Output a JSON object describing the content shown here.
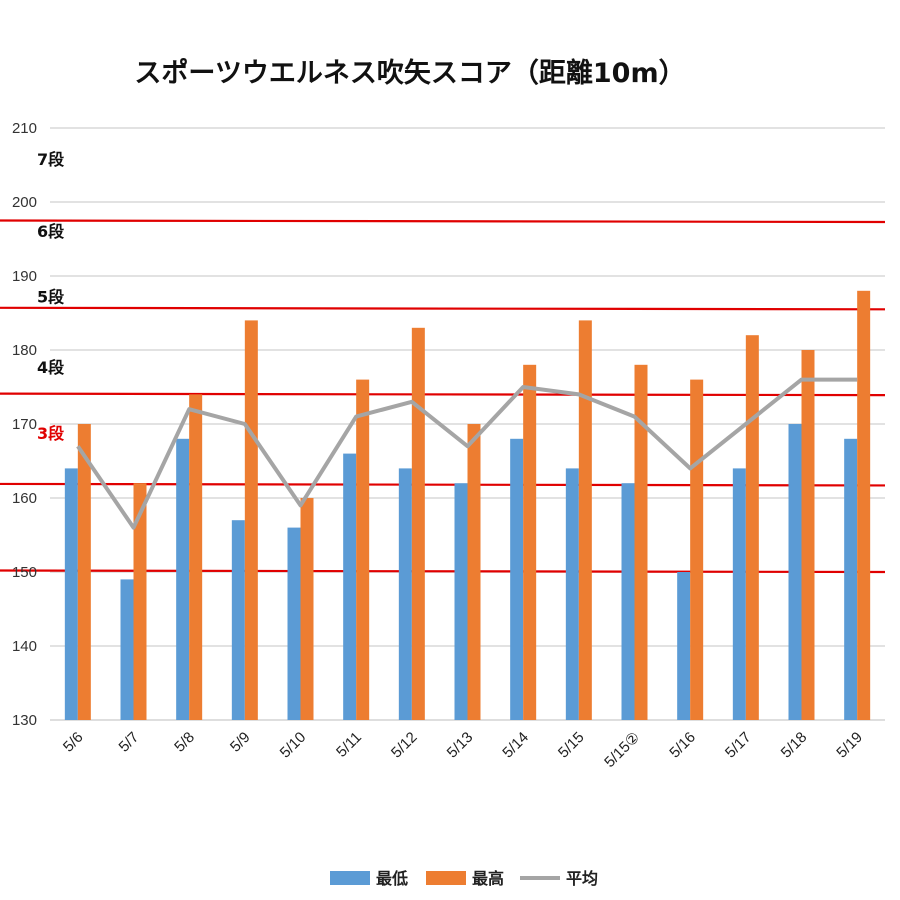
{
  "chart_data": {
    "type": "bar",
    "title": "スポーツウエルネス吹矢スコア（距離10m）",
    "categories": [
      "5/6",
      "5/7",
      "5/8",
      "5/9",
      "5/10",
      "5/11",
      "5/12",
      "5/13",
      "5/14",
      "5/15",
      "5/15②",
      "5/16",
      "5/17",
      "5/18",
      "5/19"
    ],
    "series": [
      {
        "name": "最低",
        "type": "bar",
        "color": "#5b9bd5",
        "values": [
          164,
          149,
          168,
          157,
          156,
          166,
          164,
          162,
          168,
          164,
          162,
          150,
          164,
          170,
          168
        ]
      },
      {
        "name": "最高",
        "type": "bar",
        "color": "#ed7d31",
        "values": [
          170,
          162,
          174,
          184,
          160,
          176,
          183,
          170,
          178,
          184,
          178,
          176,
          182,
          180,
          188
        ]
      },
      {
        "name": "平均",
        "type": "line",
        "color": "#a5a5a5",
        "values": [
          167,
          156,
          172,
          170,
          159,
          171,
          173,
          167,
          175,
          174,
          171,
          164,
          170,
          176,
          176
        ]
      }
    ],
    "ylim": [
      130,
      210
    ],
    "yticks": [
      130,
      140,
      150,
      160,
      170,
      180,
      190,
      200,
      210
    ],
    "grid": true,
    "legend_position": "bottom",
    "reference_lines": [
      {
        "label": "",
        "value": 150.2,
        "color": "#e00000"
      },
      {
        "label": "3段",
        "value": 161.9,
        "color": "#e00000",
        "label_value": 168.8
      },
      {
        "label": "4段",
        "value": 174.1,
        "color": "#e00000",
        "label_value": 177.7
      },
      {
        "label": "5段",
        "value": 185.7,
        "color": "#e00000",
        "label_value": 187.2
      },
      {
        "label": "6段",
        "value": 197.5,
        "color": "#e00000",
        "label_value": 196.1
      },
      {
        "label": "7段",
        "value": 210,
        "color": "",
        "label_value": 205.8
      }
    ]
  }
}
